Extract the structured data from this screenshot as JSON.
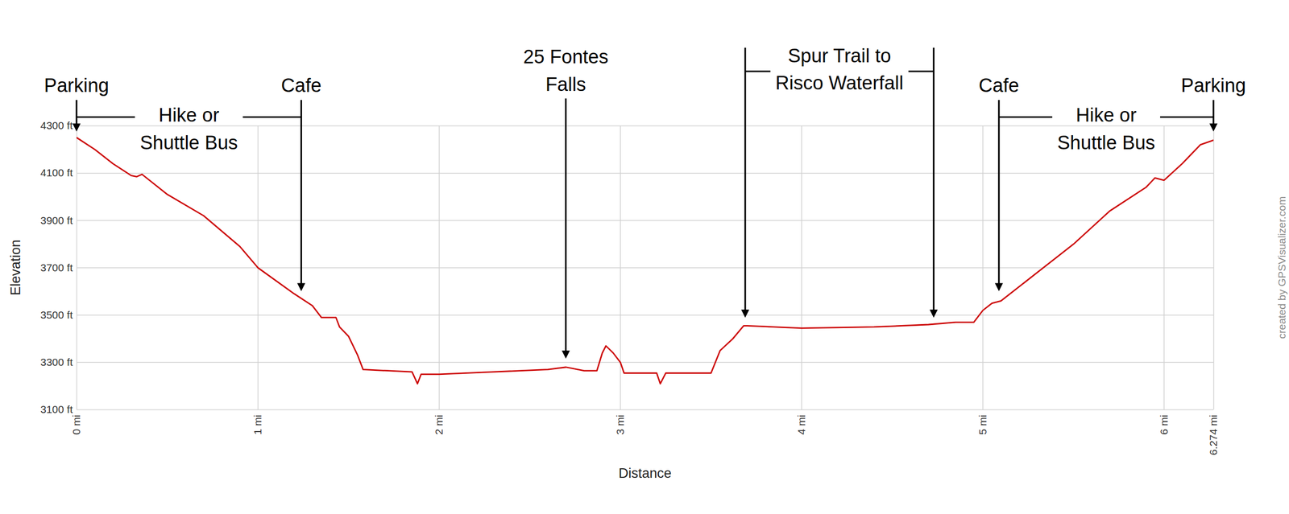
{
  "chart_data": {
    "type": "line",
    "x_label": "Distance",
    "y_label": "Elevation",
    "credit": "created by GPSVisualizer.com",
    "color": "#cc0000",
    "x": [
      0,
      0.1,
      0.2,
      0.3,
      0.33,
      0.36,
      0.5,
      0.7,
      0.9,
      1.0,
      1.2,
      1.3,
      1.35,
      1.43,
      1.45,
      1.5,
      1.55,
      1.58,
      1.85,
      1.88,
      1.9,
      2.0,
      2.3,
      2.6,
      2.7,
      2.8,
      2.87,
      2.9,
      2.92,
      2.96,
      3.0,
      3.02,
      3.2,
      3.22,
      3.25,
      3.5,
      3.55,
      3.62,
      3.68,
      3.7,
      4.0,
      4.4,
      4.7,
      4.85,
      4.95,
      5.0,
      5.05,
      5.1,
      5.3,
      5.5,
      5.7,
      5.9,
      5.95,
      6.0,
      6.1,
      6.2,
      6.274
    ],
    "values": [
      4250,
      4200,
      4140,
      4090,
      4085,
      4095,
      4010,
      3920,
      3790,
      3700,
      3590,
      3540,
      3490,
      3490,
      3450,
      3410,
      3330,
      3270,
      3260,
      3210,
      3250,
      3250,
      3260,
      3270,
      3280,
      3265,
      3265,
      3340,
      3370,
      3340,
      3300,
      3255,
      3255,
      3210,
      3255,
      3255,
      3350,
      3400,
      3455,
      3455,
      3445,
      3450,
      3460,
      3470,
      3470,
      3520,
      3550,
      3560,
      3680,
      3800,
      3940,
      4040,
      4080,
      4070,
      4140,
      4220,
      4240
    ],
    "xlim": [
      0,
      6.274
    ],
    "ylim": [
      3100,
      4300
    ],
    "xticks": [
      {
        "value": 0,
        "label": "0 mi"
      },
      {
        "value": 1,
        "label": "1 mi"
      },
      {
        "value": 2,
        "label": "2 mi"
      },
      {
        "value": 3,
        "label": "3 mi"
      },
      {
        "value": 4,
        "label": "4 mi"
      },
      {
        "value": 5,
        "label": "5 mi"
      },
      {
        "value": 6,
        "label": "6 mi"
      },
      {
        "value": 6.274,
        "label": "6.274 mi"
      }
    ],
    "yticks": [
      {
        "value": 3100,
        "label": "3100 ft"
      },
      {
        "value": 3300,
        "label": "3300 ft"
      },
      {
        "value": 3500,
        "label": "3500 ft"
      },
      {
        "value": 3700,
        "label": "3700 ft"
      },
      {
        "value": 3900,
        "label": "3900 ft"
      },
      {
        "value": 4100,
        "label": "4100 ft"
      },
      {
        "value": 4300,
        "label": "4300 ft"
      }
    ],
    "grid": true,
    "annotations": [
      {
        "text": [
          "Parking"
        ],
        "x": 0,
        "y": 4275
      },
      {
        "text": [
          "Cafe"
        ],
        "x": 1.24,
        "y": 3600
      },
      {
        "text": [
          "25 Fontes",
          "Falls"
        ],
        "x": 2.7,
        "y": 3315
      },
      {
        "text": [
          "Spur Trail to",
          "Risco Waterfall"
        ],
        "x": [
          3.69,
          4.73
        ],
        "y": [
          3488,
          3488
        ]
      },
      {
        "text": [
          "Cafe"
        ],
        "x": 5.09,
        "y": 3600
      },
      {
        "text": [
          "Parking"
        ],
        "x": 6.274,
        "y": 4275
      },
      {
        "text": [
          "Hike or",
          "Shuttle Bus"
        ],
        "x": [
          0,
          1.24
        ]
      },
      {
        "text": [
          "Hike or",
          "Shuttle Bus"
        ],
        "x": [
          5.09,
          6.274
        ]
      }
    ]
  }
}
